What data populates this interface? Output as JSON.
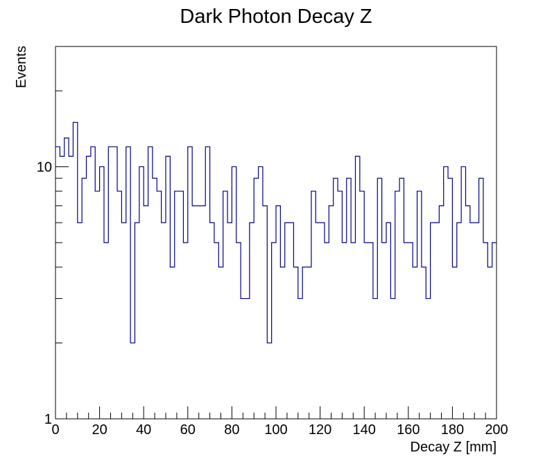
{
  "chart_data": {
    "type": "histogram",
    "title": "Dark Photon Decay Z",
    "xlabel": "Decay Z [mm]",
    "ylabel": "Events",
    "xlim": [
      0,
      200
    ],
    "ylim": [
      1,
      30
    ],
    "y_log_scale": true,
    "bin_width": 2,
    "x_tick_labels": [
      "0",
      "20",
      "40",
      "60",
      "80",
      "100",
      "120",
      "140",
      "160",
      "180",
      "200"
    ],
    "y_tick_labels": [
      "1",
      "10"
    ],
    "grid": false,
    "legend": "none",
    "line_color": "#000080",
    "values": [
      12,
      11,
      13,
      11,
      15,
      6,
      9,
      11,
      12,
      8,
      10,
      5,
      12,
      12,
      8,
      6,
      12,
      2,
      6,
      10,
      7,
      12,
      9,
      8,
      6,
      11,
      4,
      8,
      8,
      5,
      12,
      7,
      7,
      7,
      12,
      6,
      5,
      4,
      8,
      6,
      10,
      5,
      3,
      3,
      6,
      9,
      10,
      7,
      2,
      5,
      7,
      4,
      6,
      6,
      4,
      3,
      4,
      4,
      8,
      6,
      6,
      5,
      7,
      9,
      8,
      5,
      9,
      5,
      11,
      8,
      5,
      5,
      3,
      9,
      5,
      6,
      3,
      8,
      9,
      5,
      5,
      4,
      8,
      4,
      3,
      6,
      6,
      7,
      10,
      9,
      4,
      6,
      10,
      7,
      6,
      6,
      9,
      5,
      4,
      5
    ]
  }
}
